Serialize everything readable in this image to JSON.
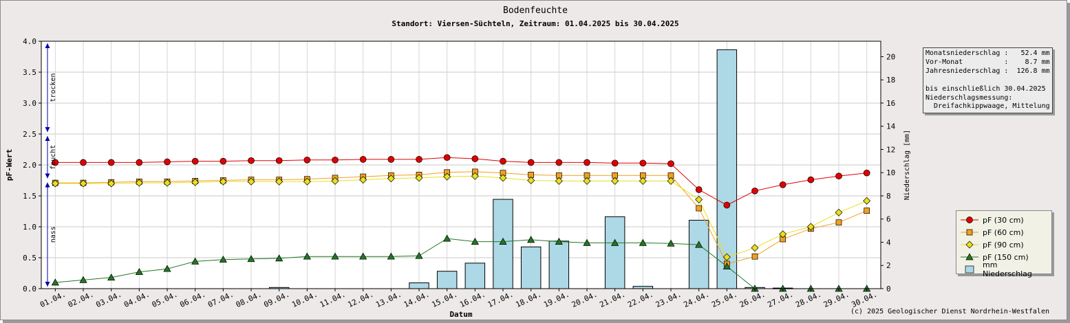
{
  "chart_data": {
    "type": "line",
    "title": "Bodenfeuchte",
    "subtitle": "Standort: Viersen-Süchteln, Zeitraum: 01.04.2025 bis 30.04.2025",
    "xlabel": "Datum",
    "ylabel": "pF-Wert",
    "y2label": "Niederschlag [mm]",
    "ylim": [
      0,
      4
    ],
    "y2lim": [
      0,
      21.33
    ],
    "y_ticks": [
      "0.0",
      "0.5",
      "1.0",
      "1.5",
      "2.0",
      "2.5",
      "3.0",
      "3.5",
      "4.0"
    ],
    "y2_ticks": [
      "0",
      "2",
      "4",
      "6",
      "8",
      "10",
      "12",
      "14",
      "16",
      "18",
      "20"
    ],
    "grid": true,
    "legend_position": "bottom-right",
    "categories": [
      "01.04.",
      "02.04.",
      "03.04.",
      "04.04.",
      "05.04.",
      "06.04.",
      "07.04.",
      "08.04.",
      "09.04.",
      "10.04.",
      "11.04.",
      "12.04.",
      "13.04.",
      "14.04.",
      "15.04.",
      "16.04.",
      "17.04.",
      "18.04.",
      "19.04.",
      "20.04.",
      "21.04.",
      "22.04.",
      "23.04.",
      "24.04.",
      "25.04.",
      "26.04.",
      "27.04.",
      "28.04.",
      "29.04.",
      "30.04."
    ],
    "series": [
      {
        "name": "pF (30 cm)",
        "color": "#e00000",
        "marker": "circle",
        "values": [
          2.04,
          2.04,
          2.04,
          2.04,
          2.05,
          2.06,
          2.06,
          2.07,
          2.07,
          2.08,
          2.08,
          2.09,
          2.09,
          2.09,
          2.12,
          2.1,
          2.06,
          2.04,
          2.04,
          2.04,
          2.03,
          2.03,
          2.02,
          1.6,
          1.35,
          1.58,
          1.68,
          1.76,
          1.82,
          1.87
        ]
      },
      {
        "name": "pF (60 cm)",
        "color": "#f0a020",
        "marker": "square",
        "values": [
          1.71,
          1.71,
          1.72,
          1.73,
          1.73,
          1.74,
          1.75,
          1.76,
          1.76,
          1.77,
          1.79,
          1.81,
          1.83,
          1.84,
          1.88,
          1.89,
          1.87,
          1.84,
          1.83,
          1.83,
          1.83,
          1.83,
          1.83,
          1.3,
          0.4,
          0.52,
          0.8,
          0.97,
          1.07,
          1.26
        ]
      },
      {
        "name": "pF (90 cm)",
        "color": "#e8e020",
        "marker": "diamond",
        "values": [
          1.7,
          1.7,
          1.7,
          1.71,
          1.71,
          1.72,
          1.73,
          1.73,
          1.73,
          1.73,
          1.74,
          1.76,
          1.78,
          1.79,
          1.81,
          1.82,
          1.79,
          1.75,
          1.74,
          1.74,
          1.74,
          1.74,
          1.74,
          1.44,
          0.51,
          0.66,
          0.88,
          1.0,
          1.23,
          1.42
        ]
      },
      {
        "name": "pF (150 cm)",
        "color": "#227722",
        "marker": "triangle",
        "values": [
          0.1,
          0.14,
          0.18,
          0.27,
          0.32,
          0.44,
          0.47,
          0.48,
          0.49,
          0.52,
          0.52,
          0.52,
          0.52,
          0.53,
          0.81,
          0.76,
          0.76,
          0.79,
          0.76,
          0.74,
          0.74,
          0.74,
          0.73,
          0.71,
          0.36,
          0.0,
          0.0,
          0.0,
          0.0,
          0.0
        ]
      }
    ],
    "bars": {
      "name": "mm  Niederschlag",
      "color": "#add8e6",
      "values": [
        0,
        0,
        0,
        0,
        0,
        0,
        0,
        0,
        0.1,
        0,
        0,
        0,
        0,
        0.5,
        1.5,
        2.2,
        7.7,
        3.6,
        4.1,
        0,
        6.2,
        0.2,
        0,
        5.9,
        20.6,
        0.1,
        0.05,
        0,
        0,
        0
      ]
    },
    "zones": [
      {
        "label": "trocken",
        "from": 2.5,
        "to": 4.0
      },
      {
        "label": "feucht",
        "from": 1.75,
        "to": 2.5
      },
      {
        "label": "nass",
        "from": 0.0,
        "to": 1.75
      }
    ]
  },
  "info_box": {
    "lines": [
      "Monatsniederschlag :   52.4 mm",
      "Vor-Monat          :    8.7 mm",
      "Jahresniederschlag :  126.8 mm",
      "",
      "bis einschließlich 30.04.2025",
      "Niederschlagsmessung:",
      "  Dreifachkippwaage, Mittelung"
    ]
  },
  "copyright": "(c) 2025 Geologischer Dienst Nordrhein-Westfalen"
}
